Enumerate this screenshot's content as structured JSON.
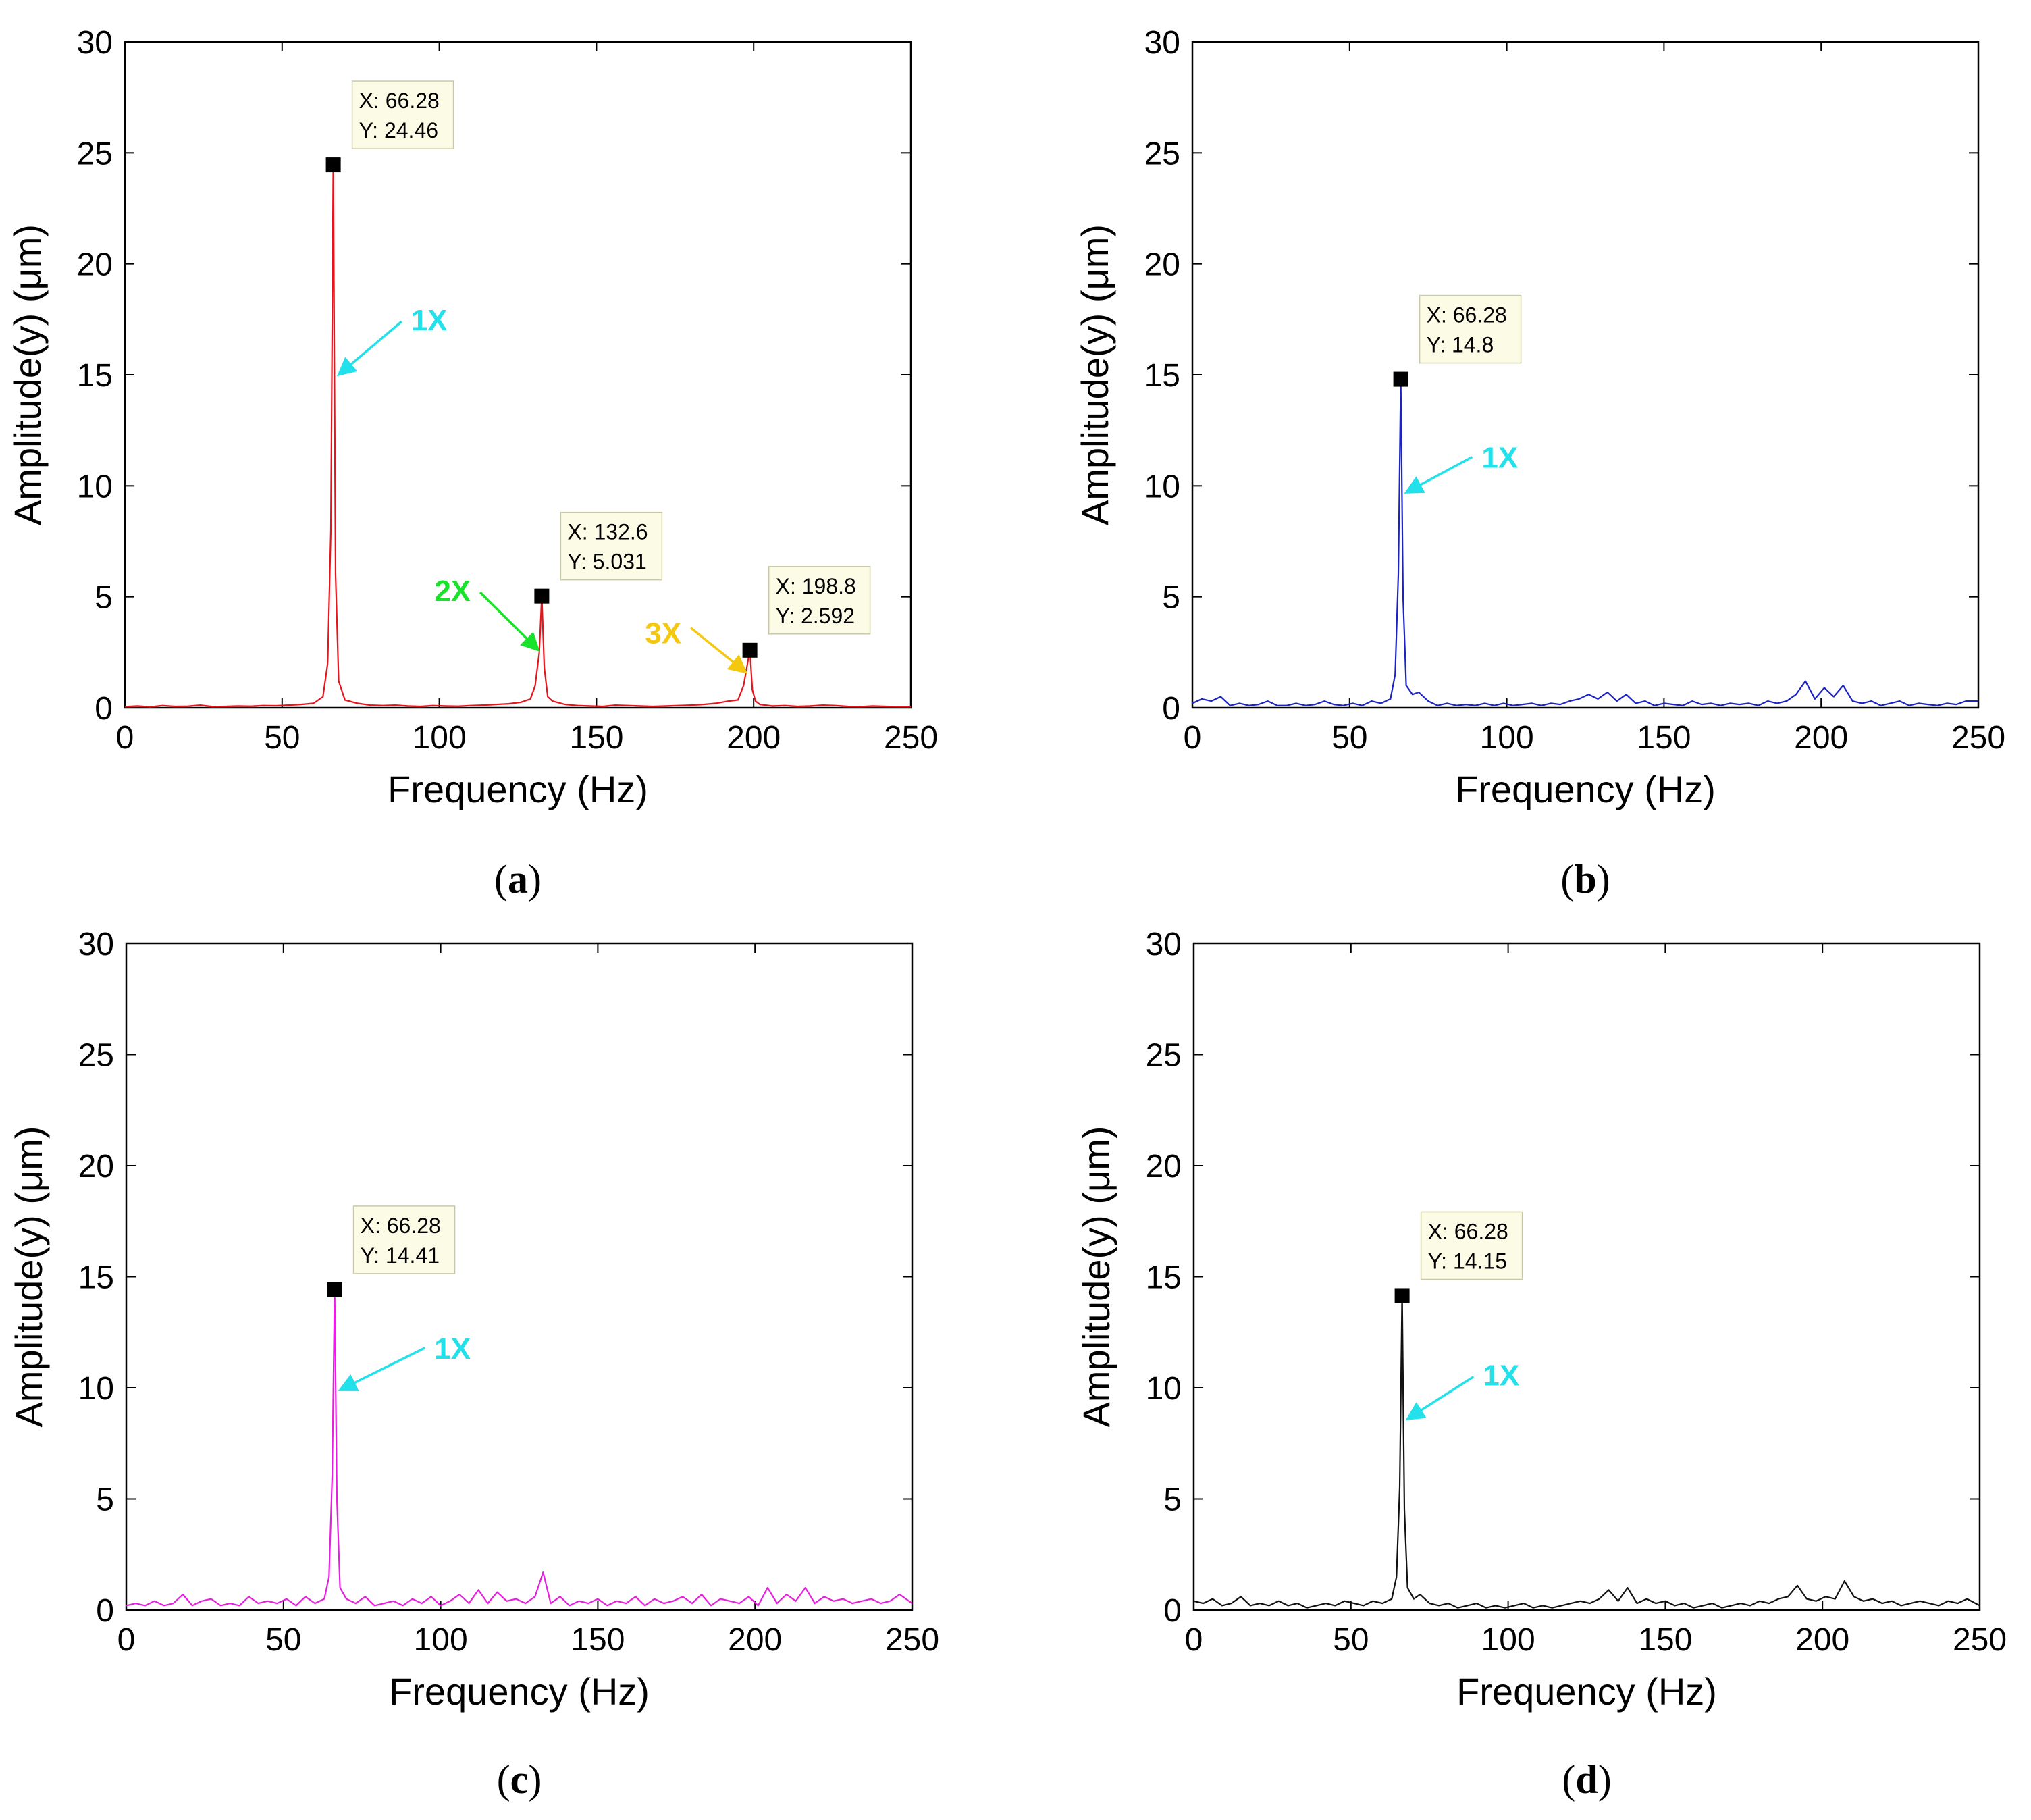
{
  "chart_data": [
    {
      "panel": "(a)",
      "panel_letter": "a",
      "type": "line",
      "xlabel": "Frequency (Hz)",
      "ylabel": "Amplitude(y) (μm)",
      "xlim": [
        0,
        250
      ],
      "ylim": [
        0,
        30
      ],
      "xticks": [
        0,
        50,
        100,
        150,
        200,
        250
      ],
      "yticks": [
        0,
        5,
        10,
        15,
        20,
        25,
        30
      ],
      "grid": false,
      "color": "#e8141b",
      "series": [
        {
          "x": [
            0,
            4,
            8,
            12,
            16,
            20,
            24,
            28,
            32,
            36,
            40,
            44,
            48,
            52,
            56,
            60,
            63,
            64.5,
            65.5,
            66.28,
            67,
            68,
            70,
            74,
            78,
            82,
            86,
            90,
            94,
            98,
            102,
            106,
            110,
            114,
            118,
            122,
            126,
            129,
            130.5,
            131.8,
            132.6,
            133.4,
            134.5,
            136,
            140,
            144,
            148,
            152,
            156,
            160,
            164,
            168,
            172,
            176,
            180,
            184,
            188,
            192,
            195,
            196.8,
            197.8,
            198.8,
            199.6,
            200.6,
            202,
            206,
            210,
            214,
            218,
            222,
            226,
            230,
            234,
            238,
            242,
            246,
            250
          ],
          "y": [
            0.05,
            0.08,
            0.04,
            0.1,
            0.06,
            0.07,
            0.12,
            0.05,
            0.06,
            0.08,
            0.07,
            0.1,
            0.09,
            0.12,
            0.15,
            0.2,
            0.5,
            2.0,
            8.0,
            24.46,
            6.0,
            1.2,
            0.35,
            0.2,
            0.12,
            0.1,
            0.12,
            0.08,
            0.06,
            0.1,
            0.08,
            0.07,
            0.1,
            0.12,
            0.15,
            0.18,
            0.25,
            0.4,
            1.0,
            2.5,
            5.031,
            1.8,
            0.5,
            0.3,
            0.15,
            0.1,
            0.08,
            0.06,
            0.12,
            0.1,
            0.08,
            0.06,
            0.08,
            0.1,
            0.12,
            0.15,
            0.2,
            0.3,
            0.35,
            1.0,
            1.8,
            2.592,
            0.8,
            0.3,
            0.15,
            0.08,
            0.1,
            0.06,
            0.08,
            0.12,
            0.1,
            0.06,
            0.05,
            0.08,
            0.06,
            0.05,
            0.05
          ]
        }
      ],
      "datatips": [
        {
          "x": 66.28,
          "y": 24.46,
          "line1": "X: 66.28",
          "line2": "Y: 24.46"
        },
        {
          "x": 132.6,
          "y": 5.031,
          "line1": "X: 132.6",
          "line2": "Y: 5.031"
        },
        {
          "x": 198.8,
          "y": 2.592,
          "line1": "X: 198.8",
          "line2": "Y: 2.592"
        }
      ],
      "annotations": [
        {
          "text": "1X",
          "color": "#22e1ea",
          "label_x": 91,
          "label_y": 17.5,
          "tail_x": 88,
          "tail_y": 17.4,
          "head_x": 68,
          "head_y": 15
        },
        {
          "text": "2X",
          "color": "#19e22b",
          "label_x": 110,
          "label_y": 5.3,
          "tail_x": 113,
          "tail_y": 5.2,
          "head_x": 131.5,
          "head_y": 2.6
        },
        {
          "text": "3X",
          "color": "#f5c810",
          "label_x": 177,
          "label_y": 3.4,
          "tail_x": 180,
          "tail_y": 3.6,
          "head_x": 197.5,
          "head_y": 1.6
        }
      ]
    },
    {
      "panel": "(b)",
      "panel_letter": "b",
      "type": "line",
      "xlabel": "Frequency (Hz)",
      "ylabel": "Amplitude(y) (μm)",
      "xlim": [
        0,
        250
      ],
      "ylim": [
        0,
        30
      ],
      "xticks": [
        0,
        50,
        100,
        150,
        200,
        250
      ],
      "yticks": [
        0,
        5,
        10,
        15,
        20,
        25,
        30
      ],
      "grid": false,
      "color": "#1b23c4",
      "series": [
        {
          "x": [
            0,
            3,
            6,
            9,
            12,
            15,
            18,
            21,
            24,
            27,
            30,
            33,
            36,
            39,
            42,
            45,
            48,
            51,
            54,
            57,
            60,
            63,
            64.5,
            65.5,
            66.28,
            67,
            68,
            70,
            72,
            75,
            78,
            81,
            84,
            87,
            90,
            93,
            96,
            99,
            102,
            105,
            108,
            111,
            114,
            117,
            120,
            123,
            126,
            129,
            132,
            135,
            138,
            141,
            144,
            147,
            150,
            153,
            156,
            159,
            162,
            165,
            168,
            171,
            174,
            177,
            180,
            183,
            186,
            189,
            192,
            195,
            198,
            201,
            204,
            207,
            210,
            213,
            216,
            219,
            222,
            225,
            228,
            231,
            234,
            237,
            240,
            243,
            246,
            250
          ],
          "y": [
            0.2,
            0.4,
            0.3,
            0.5,
            0.1,
            0.2,
            0.1,
            0.15,
            0.3,
            0.1,
            0.1,
            0.2,
            0.1,
            0.15,
            0.3,
            0.15,
            0.1,
            0.2,
            0.1,
            0.3,
            0.2,
            0.4,
            1.5,
            6.0,
            14.8,
            5.0,
            1.0,
            0.6,
            0.7,
            0.3,
            0.1,
            0.2,
            0.1,
            0.15,
            0.1,
            0.2,
            0.1,
            0.2,
            0.1,
            0.15,
            0.2,
            0.1,
            0.2,
            0.15,
            0.3,
            0.4,
            0.6,
            0.4,
            0.7,
            0.3,
            0.6,
            0.2,
            0.3,
            0.1,
            0.2,
            0.15,
            0.1,
            0.3,
            0.15,
            0.2,
            0.1,
            0.2,
            0.15,
            0.2,
            0.1,
            0.3,
            0.2,
            0.3,
            0.6,
            1.2,
            0.4,
            0.9,
            0.5,
            1.0,
            0.3,
            0.2,
            0.3,
            0.1,
            0.2,
            0.3,
            0.1,
            0.2,
            0.15,
            0.1,
            0.2,
            0.15,
            0.3,
            0.3
          ]
        }
      ],
      "datatips": [
        {
          "x": 66.28,
          "y": 14.8,
          "line1": "X: 66.28",
          "line2": "Y: 14.8"
        }
      ],
      "annotations": [
        {
          "text": "1X",
          "color": "#22e1ea",
          "label_x": 92,
          "label_y": 11.3,
          "tail_x": 89,
          "tail_y": 11.3,
          "head_x": 68,
          "head_y": 9.7
        }
      ]
    },
    {
      "panel": "(c)",
      "panel_letter": "c",
      "type": "line",
      "xlabel": "Frequency (Hz)",
      "ylabel": "Amplitude(y) (μm)",
      "xlim": [
        0,
        250
      ],
      "ylim": [
        0,
        30
      ],
      "xticks": [
        0,
        50,
        100,
        150,
        200,
        250
      ],
      "yticks": [
        0,
        5,
        10,
        15,
        20,
        25,
        30
      ],
      "grid": false,
      "color": "#e81ee0",
      "series": [
        {
          "x": [
            0,
            3,
            6,
            9,
            12,
            15,
            18,
            21,
            24,
            27,
            30,
            33,
            36,
            39,
            42,
            45,
            48,
            51,
            54,
            57,
            60,
            63,
            64.5,
            65.5,
            66.28,
            67,
            68,
            70,
            73,
            76,
            79,
            82,
            85,
            88,
            91,
            94,
            97,
            100,
            103,
            106,
            109,
            112,
            115,
            118,
            121,
            124,
            127,
            130,
            132.6,
            135,
            138,
            141,
            144,
            147,
            150,
            153,
            156,
            159,
            162,
            165,
            168,
            171,
            174,
            177,
            180,
            183,
            186,
            189,
            192,
            195,
            198,
            201,
            204,
            207,
            210,
            213,
            216,
            219,
            222,
            225,
            228,
            231,
            234,
            237,
            240,
            243,
            246,
            250
          ],
          "y": [
            0.2,
            0.3,
            0.2,
            0.4,
            0.2,
            0.3,
            0.7,
            0.2,
            0.4,
            0.5,
            0.2,
            0.3,
            0.2,
            0.6,
            0.3,
            0.4,
            0.3,
            0.5,
            0.2,
            0.6,
            0.3,
            0.5,
            1.5,
            6.0,
            14.41,
            5.0,
            1.0,
            0.5,
            0.3,
            0.6,
            0.2,
            0.3,
            0.4,
            0.2,
            0.5,
            0.3,
            0.6,
            0.2,
            0.4,
            0.7,
            0.3,
            0.9,
            0.3,
            0.8,
            0.4,
            0.5,
            0.3,
            0.6,
            1.7,
            0.3,
            0.6,
            0.2,
            0.4,
            0.3,
            0.5,
            0.2,
            0.4,
            0.3,
            0.6,
            0.2,
            0.5,
            0.3,
            0.4,
            0.6,
            0.3,
            0.7,
            0.2,
            0.5,
            0.4,
            0.3,
            0.6,
            0.2,
            1.0,
            0.3,
            0.7,
            0.4,
            1.0,
            0.3,
            0.6,
            0.4,
            0.5,
            0.3,
            0.4,
            0.5,
            0.3,
            0.4,
            0.7,
            0.3
          ]
        }
      ],
      "datatips": [
        {
          "x": 66.28,
          "y": 14.41,
          "line1": "X: 66.28",
          "line2": "Y: 14.41"
        }
      ],
      "annotations": [
        {
          "text": "1X",
          "color": "#22e1ea",
          "label_x": 98,
          "label_y": 11.8,
          "tail_x": 95,
          "tail_y": 11.8,
          "head_x": 68,
          "head_y": 9.9
        }
      ]
    },
    {
      "panel": "(d)",
      "panel_letter": "d",
      "type": "line",
      "xlabel": "Frequency (Hz)",
      "ylabel": "Amplitude(y) (μm)",
      "xlim": [
        0,
        250
      ],
      "ylim": [
        0,
        30
      ],
      "xticks": [
        0,
        50,
        100,
        150,
        200,
        250
      ],
      "yticks": [
        0,
        5,
        10,
        15,
        20,
        25,
        30
      ],
      "grid": false,
      "color": "#111111",
      "series": [
        {
          "x": [
            0,
            3,
            6,
            9,
            12,
            15,
            18,
            21,
            24,
            27,
            30,
            33,
            36,
            39,
            42,
            45,
            48,
            51,
            54,
            57,
            60,
            63,
            64.5,
            65.5,
            66.28,
            67,
            68,
            70,
            72,
            75,
            78,
            81,
            84,
            87,
            90,
            93,
            96,
            99,
            102,
            105,
            108,
            111,
            114,
            117,
            120,
            123,
            126,
            129,
            132,
            135,
            138,
            141,
            144,
            147,
            150,
            153,
            156,
            159,
            162,
            165,
            168,
            171,
            174,
            177,
            180,
            183,
            186,
            189,
            192,
            195,
            198,
            201,
            204,
            207,
            210,
            213,
            216,
            219,
            222,
            225,
            228,
            231,
            234,
            237,
            240,
            243,
            246,
            250
          ],
          "y": [
            0.4,
            0.3,
            0.5,
            0.2,
            0.3,
            0.6,
            0.2,
            0.3,
            0.2,
            0.4,
            0.2,
            0.3,
            0.1,
            0.2,
            0.3,
            0.2,
            0.4,
            0.3,
            0.2,
            0.4,
            0.3,
            0.5,
            1.5,
            5.5,
            14.15,
            4.5,
            1.0,
            0.5,
            0.7,
            0.3,
            0.2,
            0.3,
            0.1,
            0.2,
            0.3,
            0.1,
            0.2,
            0.1,
            0.2,
            0.3,
            0.1,
            0.2,
            0.1,
            0.2,
            0.3,
            0.4,
            0.3,
            0.5,
            0.9,
            0.4,
            1.0,
            0.3,
            0.5,
            0.3,
            0.4,
            0.2,
            0.3,
            0.1,
            0.2,
            0.3,
            0.1,
            0.2,
            0.3,
            0.2,
            0.4,
            0.3,
            0.5,
            0.6,
            1.1,
            0.5,
            0.4,
            0.6,
            0.5,
            1.3,
            0.6,
            0.4,
            0.5,
            0.3,
            0.4,
            0.2,
            0.3,
            0.4,
            0.3,
            0.2,
            0.4,
            0.3,
            0.5,
            0.2
          ]
        }
      ],
      "datatips": [
        {
          "x": 66.28,
          "y": 14.15,
          "line1": "X: 66.28",
          "line2": "Y: 14.15"
        }
      ],
      "annotations": [
        {
          "text": "1X",
          "color": "#22e1ea",
          "label_x": 92,
          "label_y": 10.6,
          "tail_x": 89,
          "tail_y": 10.5,
          "head_x": 68,
          "head_y": 8.6
        }
      ]
    }
  ]
}
